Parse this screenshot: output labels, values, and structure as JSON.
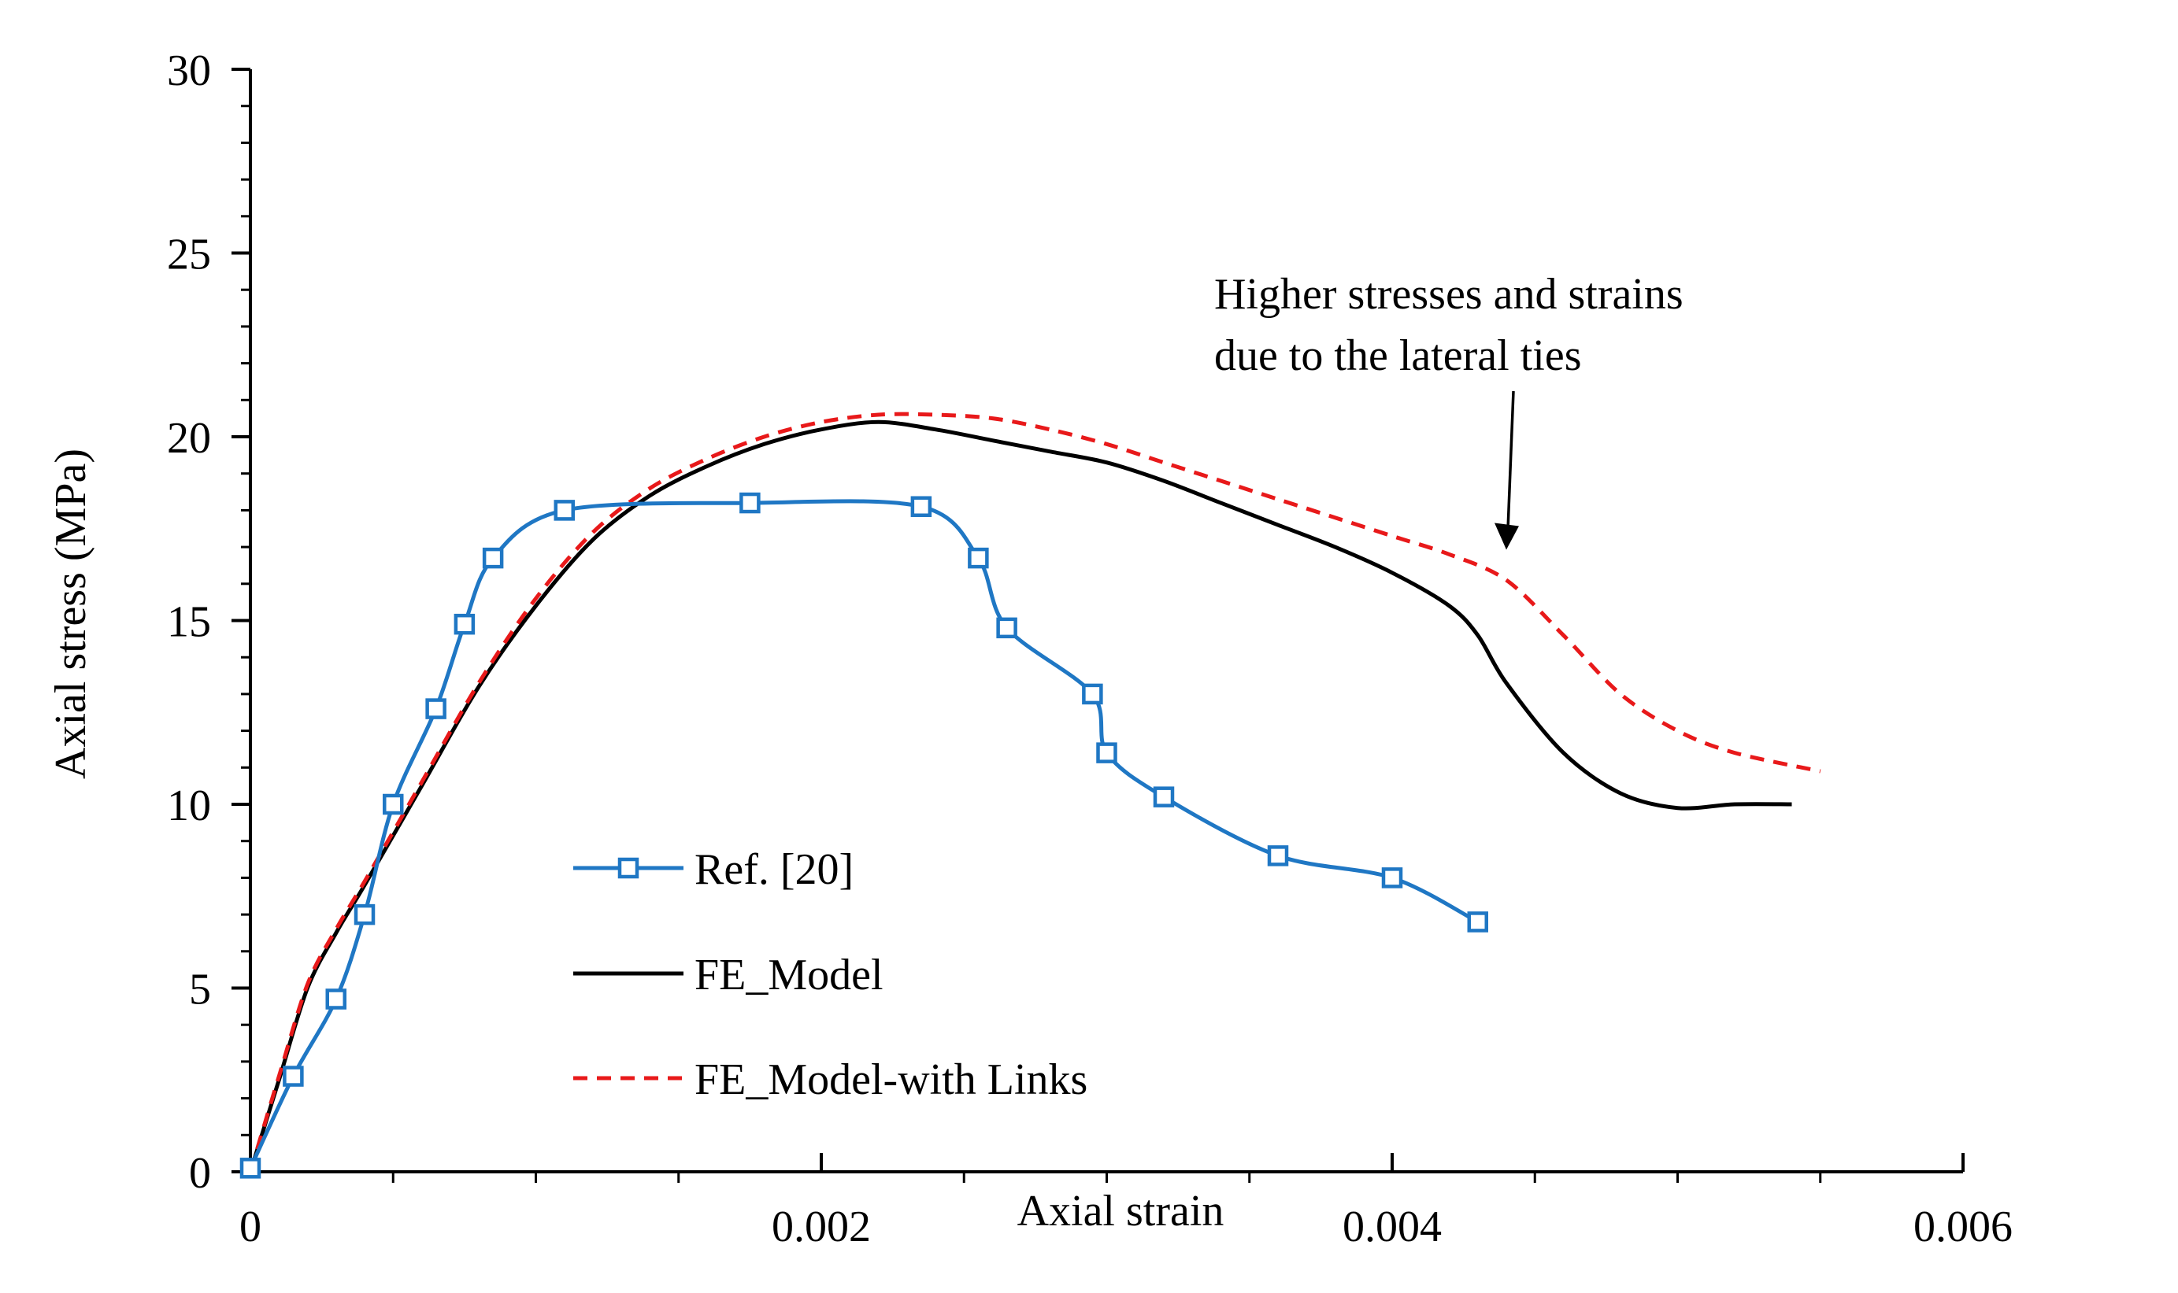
{
  "chart_data": {
    "type": "line",
    "title": "",
    "xlabel": "Axial strain",
    "ylabel": "Axial stress (MPa)",
    "xlim": [
      0,
      0.006
    ],
    "ylim": [
      0,
      30
    ],
    "x_ticks": [
      0,
      0.002,
      0.004,
      0.006
    ],
    "x_tick_labels": [
      "0",
      "0.002",
      "0.004",
      "0.006"
    ],
    "x_minor_step": 0.0005,
    "y_ticks": [
      0,
      5,
      10,
      15,
      20,
      25,
      30
    ],
    "y_tick_labels": [
      "0",
      "5",
      "10",
      "15",
      "20",
      "25",
      "30"
    ],
    "y_minor_step": 1,
    "grid": false,
    "legend_position": "center-left",
    "series": [
      {
        "name": "Ref. [20]",
        "color": "#1f77c4",
        "line_style": "solid",
        "marker": "square",
        "x": [
          0.0,
          0.00015,
          0.0003,
          0.0004,
          0.0005,
          0.00065,
          0.00075,
          0.00085,
          0.0011,
          0.00175,
          0.00235,
          0.00255,
          0.00265,
          0.00295,
          0.003,
          0.0032,
          0.0036,
          0.004,
          0.0043
        ],
        "y": [
          0.1,
          2.6,
          4.7,
          7.0,
          10.0,
          12.6,
          14.9,
          16.7,
          18.0,
          18.2,
          18.1,
          16.7,
          14.8,
          13.0,
          11.4,
          10.2,
          8.6,
          8.0,
          6.8
        ]
      },
      {
        "name": "FE_Model",
        "color": "#000000",
        "line_style": "solid",
        "marker": "none",
        "x": [
          0.0,
          0.0001,
          0.0002,
          0.0003,
          0.0004,
          0.0006,
          0.0008,
          0.001,
          0.0012,
          0.0014,
          0.0016,
          0.0018,
          0.002,
          0.0022,
          0.0024,
          0.0026,
          0.0028,
          0.003,
          0.0032,
          0.0034,
          0.0036,
          0.0038,
          0.004,
          0.0042,
          0.0043,
          0.0044,
          0.0046,
          0.0048,
          0.005,
          0.0052,
          0.0054
        ],
        "y": [
          0.0,
          2.5,
          5.0,
          6.5,
          7.8,
          10.5,
          13.2,
          15.4,
          17.2,
          18.4,
          19.2,
          19.8,
          20.2,
          20.4,
          20.2,
          19.9,
          19.6,
          19.3,
          18.8,
          18.2,
          17.6,
          17.0,
          16.3,
          15.4,
          14.6,
          13.3,
          11.4,
          10.3,
          9.9,
          10.0,
          10.0
        ]
      },
      {
        "name": "FE_Model-with Links",
        "color": "#e8191a",
        "line_style": "dashed",
        "marker": "none",
        "x": [
          0.0,
          0.0001,
          0.0002,
          0.0003,
          0.0004,
          0.0006,
          0.0008,
          0.001,
          0.0012,
          0.0014,
          0.0016,
          0.0018,
          0.002,
          0.0022,
          0.0024,
          0.0026,
          0.0028,
          0.003,
          0.0032,
          0.0034,
          0.0036,
          0.0038,
          0.004,
          0.0042,
          0.0044,
          0.0046,
          0.0048,
          0.005,
          0.0052,
          0.0055
        ],
        "y": [
          0.0,
          2.6,
          5.1,
          6.6,
          7.9,
          10.6,
          13.3,
          15.6,
          17.4,
          18.6,
          19.4,
          20.0,
          20.4,
          20.6,
          20.6,
          20.5,
          20.2,
          19.8,
          19.3,
          18.8,
          18.3,
          17.8,
          17.3,
          16.8,
          16.1,
          14.6,
          13.0,
          12.0,
          11.4,
          10.9
        ]
      }
    ],
    "annotation": {
      "lines": [
        "Higher stresses and strains",
        "due to the lateral ties"
      ],
      "arrow_to": [
        0.0044,
        16.8
      ]
    }
  }
}
